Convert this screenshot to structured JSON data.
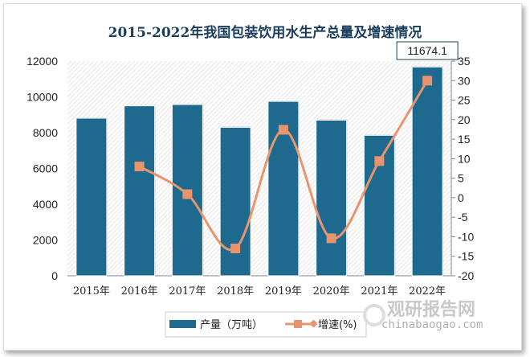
{
  "chart_data": {
    "type": "bar+line",
    "title": "2015-2022年我国包装饮用水生产总量及增速情况",
    "categories": [
      "2015年",
      "2016年",
      "2017年",
      "2018年",
      "2019年",
      "2020年",
      "2021年",
      "2022年"
    ],
    "series": [
      {
        "name": "产量（万吨）",
        "type": "bar",
        "axis": "left",
        "color": "#1e6a8e",
        "values": [
          8810,
          9500,
          9570,
          8300,
          9750,
          8700,
          7850,
          11674.1
        ]
      },
      {
        "name": "增速(%)",
        "type": "line",
        "axis": "right",
        "color": "#e8956e",
        "values": [
          null,
          8.0,
          0.9,
          -13.0,
          17.4,
          -10.4,
          9.4,
          30.0
        ]
      }
    ],
    "annotation": "11674.1",
    "y_left": {
      "range": [
        0,
        12000
      ],
      "ticks": [
        0,
        2000,
        4000,
        6000,
        8000,
        10000,
        12000
      ]
    },
    "y_right": {
      "range": [
        -20,
        35
      ],
      "ticks": [
        -20,
        -15,
        -10,
        -5,
        0,
        5,
        10,
        15,
        20,
        25,
        30,
        35
      ]
    },
    "legend": "bottom",
    "grid": false
  },
  "watermark": {
    "name": "观研报告网",
    "url_text": "chinabaogao.com"
  }
}
